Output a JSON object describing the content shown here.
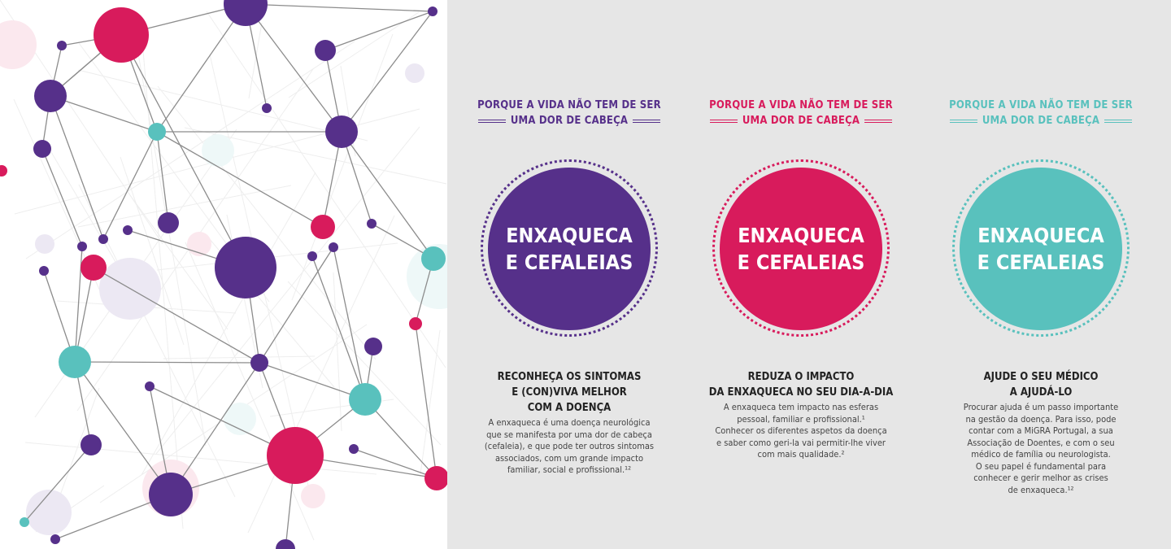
{
  "colors": {
    "purple": "#56308a",
    "pink": "#d81b5c",
    "teal": "#59c1bd",
    "background": "#e6e6e6"
  },
  "columns": [
    {
      "tag_line1": "PORQUE A VIDA NÃO TEM DE SER",
      "tag_line2": "UMA DOR DE CABEÇA",
      "circle_line1": "ENXAQUECA",
      "circle_line2": "E CEFALEIAS",
      "heading": [
        "RECONHEÇA OS SINTOMAS",
        "E (CON)VIVA MELHOR",
        "COM A DOENÇA"
      ],
      "body": [
        "A enxaqueca é uma doença neurológica",
        "que se manifesta por uma dor de cabeça",
        "(cefaleia), e que pode ter outros sintomas",
        "associados, com um grande impacto",
        "familiar, social e profissional.¹²"
      ]
    },
    {
      "tag_line1": "PORQUE A VIDA NÃO TEM DE SER",
      "tag_line2": "UMA DOR DE CABEÇA",
      "circle_line1": "ENXAQUECA",
      "circle_line2": "E CEFALEIAS",
      "heading": [
        "REDUZA O IMPACTO",
        "DA ENXAQUECA NO SEU DIA-A-DIA"
      ],
      "body": [
        "A enxaqueca tem impacto nas esferas",
        "pessoal, familiar e profissional.¹",
        "Conhecer os diferentes aspetos da doença",
        "e saber como geri-la vai permitir-lhe viver",
        "com mais qualidade.²"
      ]
    },
    {
      "tag_line1": "PORQUE A VIDA NÃO TEM DE SER",
      "tag_line2": "UMA DOR DE CABEÇA",
      "circle_line1": "ENXAQUECA",
      "circle_line2": "E CEFALEIAS",
      "heading": [
        "AJUDE O SEU MÉDICO",
        "A AJUDÁ-LO"
      ],
      "body": [
        "Procurar ajuda é um passo importante",
        "na gestão da doença. Para isso, pode",
        "contar com a MiGRA Portugal, a sua",
        "Associação de Doentes, e com o seu",
        "médico de família ou neurologista.",
        "O seu papel é fundamental para",
        "conhecer e gerir melhor as crises",
        "de enxaqueca.¹²"
      ]
    }
  ]
}
